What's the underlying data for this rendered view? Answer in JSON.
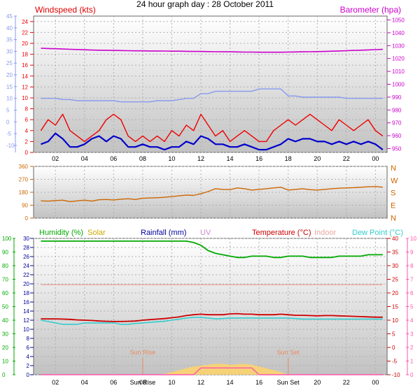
{
  "title": "24 hour graph day : 28 October 2011",
  "colors": {
    "wind": "#ee0000",
    "avg_wind": "#0000cc",
    "temp_left_axis": "#8899ee",
    "barometer": "#cc00cc",
    "direction": "#cc6600",
    "humidity": "#00aa00",
    "solar": "#ccaa00",
    "rainfall": "#000099",
    "uv": "#cc88cc",
    "temperature": "#cc0000",
    "indoor": "#e8a8a0",
    "dew_point": "#33cccc",
    "uv_axis": "#ff55aa",
    "sun_event": "#e88a60",
    "plot_bg_top": "#ffffff",
    "plot_bg_bottom": "#c0c0c0",
    "grid": "#b0b0b0"
  },
  "chart_data": [
    {
      "type": "line",
      "id": "wind_pressure",
      "x": [
        "01:00",
        "01:30",
        "02:00",
        "02:30",
        "03:00",
        "03:30",
        "04:00",
        "04:30",
        "05:00",
        "05:30",
        "06:00",
        "06:30",
        "07:00",
        "07:30",
        "08:00",
        "08:30",
        "09:00",
        "09:30",
        "10:00",
        "10:30",
        "11:00",
        "11:30",
        "12:00",
        "12:30",
        "13:00",
        "13:30",
        "14:00",
        "14:30",
        "15:00",
        "15:30",
        "16:00",
        "16:30",
        "17:00",
        "17:30",
        "18:00",
        "18:30",
        "19:00",
        "19:30",
        "20:00",
        "20:30",
        "21:00",
        "21:30",
        "22:00",
        "22:30",
        "23:00",
        "23:30",
        "24:00",
        "24:30"
      ],
      "xticks": [
        "02",
        "04",
        "06",
        "08",
        "10",
        "12",
        "14",
        "16",
        "18",
        "20",
        "22",
        "00"
      ],
      "title": "Windspeed (kts)",
      "right_title": "Barometer (hpa)",
      "left_yticks": [
        "24",
        "22",
        "20",
        "18",
        "16",
        "14",
        "12",
        "10",
        "8",
        "6",
        "4",
        "2",
        "0"
      ],
      "left_ylim": [
        0,
        25
      ],
      "right_yticks": [
        "1050",
        "1040",
        "1030",
        "1020",
        "1010",
        "1000",
        "990",
        "980",
        "970",
        "960",
        "950"
      ],
      "right_ylim": [
        947,
        1053
      ],
      "outer_yticks": [
        "45",
        "40",
        "35",
        "30",
        "25",
        "20",
        "15",
        "10",
        "5",
        "0",
        "-5",
        "-10"
      ],
      "outer_ylim": [
        -13,
        45
      ],
      "series": [
        {
          "role": "wind",
          "axis": "left",
          "values": [
            4,
            6,
            5,
            7,
            4,
            3,
            2,
            3,
            4,
            6,
            7,
            6,
            3,
            2,
            3,
            2,
            3,
            2,
            4,
            3,
            5,
            4,
            7,
            5,
            3,
            4,
            2,
            3,
            4,
            3,
            2,
            2,
            4,
            5,
            6,
            5,
            6,
            7,
            6,
            5,
            4,
            6,
            5,
            4,
            5,
            6,
            4,
            3
          ]
        },
        {
          "role": "avg_wind",
          "axis": "left",
          "values": [
            1.5,
            2,
            3.5,
            2.5,
            1,
            1,
            1.5,
            2.5,
            3,
            2,
            3,
            2.5,
            1,
            1,
            1.5,
            1,
            1,
            0.5,
            1,
            1,
            2,
            1.5,
            3,
            2.5,
            1.5,
            1.5,
            1,
            1,
            1.5,
            1,
            0.5,
            0.5,
            1,
            1.5,
            2.5,
            2,
            2.5,
            2.5,
            2,
            2,
            1.5,
            2,
            1.5,
            2,
            1.5,
            2,
            1.5,
            0.5
          ]
        },
        {
          "role": "temp_left_axis",
          "axis": "outer",
          "values": [
            10,
            10,
            10,
            9.5,
            9.5,
            9,
            9,
            9,
            9,
            9,
            9,
            8.5,
            8.5,
            8.5,
            8.5,
            8.5,
            9,
            9,
            9,
            9.5,
            10,
            10,
            12,
            12,
            13,
            13,
            13,
            13,
            13,
            13,
            14,
            14,
            14,
            14,
            11,
            11,
            10.5,
            10.5,
            10.5,
            10.5,
            10.5,
            10.5,
            10,
            10,
            10,
            10,
            10,
            10
          ]
        },
        {
          "role": "barometer",
          "axis": "right",
          "values": [
            1028,
            1027.8,
            1027.6,
            1027.4,
            1027.2,
            1027,
            1026.8,
            1026.6,
            1026.5,
            1026.4,
            1026.3,
            1026.2,
            1026.1,
            1026,
            1026,
            1025.9,
            1025.9,
            1025.8,
            1025.7,
            1025.7,
            1025.6,
            1025.5,
            1025.5,
            1025.4,
            1025.3,
            1025.2,
            1025.2,
            1025.1,
            1025,
            1025,
            1024.9,
            1024.9,
            1024.9,
            1024.9,
            1025,
            1025.1,
            1025.2,
            1025.3,
            1025.4,
            1025.5,
            1025.7,
            1025.9,
            1026.1,
            1026.3,
            1026.5,
            1026.7,
            1026.9,
            1027.1
          ]
        }
      ]
    },
    {
      "type": "line",
      "id": "wind_direction",
      "x": [
        "01:00",
        "01:30",
        "02:00",
        "02:30",
        "03:00",
        "03:30",
        "04:00",
        "04:30",
        "05:00",
        "05:30",
        "06:00",
        "06:30",
        "07:00",
        "07:30",
        "08:00",
        "08:30",
        "09:00",
        "09:30",
        "10:00",
        "10:30",
        "11:00",
        "11:30",
        "12:00",
        "12:30",
        "13:00",
        "13:30",
        "14:00",
        "14:30",
        "15:00",
        "15:30",
        "16:00",
        "16:30",
        "17:00",
        "17:30",
        "18:00",
        "18:30",
        "19:00",
        "19:30",
        "20:00",
        "20:30",
        "21:00",
        "21:30",
        "22:00",
        "22:30",
        "23:00",
        "23:30",
        "24:00",
        "24:30"
      ],
      "xticks": [
        "02",
        "04",
        "06",
        "08",
        "10",
        "12",
        "14",
        "16",
        "18",
        "20",
        "22",
        "00"
      ],
      "left_yticks": [
        "360",
        "270",
        "180",
        "90",
        "0"
      ],
      "ylim": [
        0,
        360
      ],
      "compass_labels": [
        "N",
        "W",
        "S",
        "E",
        "N"
      ],
      "series": [
        {
          "role": "direction",
          "values": [
            120,
            118,
            122,
            125,
            115,
            120,
            125,
            118,
            128,
            130,
            126,
            132,
            135,
            130,
            138,
            140,
            142,
            145,
            150,
            155,
            160,
            158,
            170,
            185,
            205,
            200,
            198,
            210,
            205,
            195,
            200,
            205,
            210,
            215,
            195,
            200,
            205,
            198,
            195,
            200,
            205,
            208,
            210,
            212,
            215,
            218,
            220,
            215
          ]
        }
      ]
    },
    {
      "type": "area",
      "id": "humidity_temperature",
      "x": [
        "01:00",
        "01:30",
        "02:00",
        "02:30",
        "03:00",
        "03:30",
        "04:00",
        "04:30",
        "05:00",
        "05:30",
        "06:00",
        "06:30",
        "07:00",
        "07:30",
        "08:00",
        "08:30",
        "09:00",
        "09:30",
        "10:00",
        "10:30",
        "11:00",
        "11:30",
        "12:00",
        "12:30",
        "13:00",
        "13:30",
        "14:00",
        "14:30",
        "15:00",
        "15:30",
        "16:00",
        "16:30",
        "17:00",
        "17:30",
        "18:00",
        "18:30",
        "19:00",
        "19:30",
        "20:00",
        "20:30",
        "21:00",
        "21:30",
        "22:00",
        "22:30",
        "23:00",
        "23:30",
        "24:00",
        "24:30"
      ],
      "xticks": [
        "02",
        "04",
        "06",
        "08",
        "10",
        "Sun Rise",
        "12",
        "14",
        "16",
        "Sun Set",
        "20",
        "22",
        "00"
      ],
      "legend": [
        "Humidity (%)",
        "Solar",
        "Rainfall (mm)",
        "UV",
        "Temperature (°C)",
        "Indoor",
        "Dew Point (°C)"
      ],
      "left_yticks": [
        "100",
        "90",
        "80",
        "70",
        "60",
        "50",
        "40",
        "30",
        "20",
        "10",
        "0"
      ],
      "left_ylim": [
        0,
        100
      ],
      "rain_yticks": [
        "30",
        "28",
        "26",
        "24",
        "22",
        "20",
        "18",
        "16",
        "14",
        "12",
        "10",
        "8",
        "6",
        "4",
        "2",
        "0"
      ],
      "rain_ylim": [
        0,
        30
      ],
      "temp_yticks": [
        "40",
        "35",
        "30",
        "25",
        "20",
        "15",
        "10",
        "5",
        "0",
        "-5",
        "-10"
      ],
      "temp_ylim": [
        -10,
        40
      ],
      "uv_yticks": [
        "10",
        "9",
        "8",
        "7",
        "6",
        "5",
        "4",
        "3",
        "2",
        "1",
        "0"
      ],
      "uv_ylim": [
        0,
        10
      ],
      "sun_events": [
        {
          "label": "Sun Rise",
          "time": "08:00"
        },
        {
          "label": "Sun Set",
          "time": "18:00"
        }
      ],
      "series": [
        {
          "role": "humidity",
          "axis": "left",
          "values": [
            98,
            98,
            98,
            98,
            98,
            98,
            98,
            98,
            98,
            98,
            98,
            98,
            98,
            98,
            98,
            98,
            98,
            98,
            98,
            98,
            98,
            97,
            95,
            91,
            89,
            88,
            87,
            86,
            86,
            87,
            87,
            87,
            86,
            86,
            87,
            87,
            87,
            86,
            86,
            86,
            86,
            87,
            87,
            87,
            87,
            88,
            88,
            88
          ]
        },
        {
          "role": "indoor",
          "axis": "temp",
          "values": [
            23,
            23,
            23,
            23,
            23,
            23,
            23,
            23,
            23,
            23,
            23,
            23,
            23,
            23,
            23,
            23,
            23,
            23,
            23,
            23,
            23,
            23,
            23,
            23,
            23,
            23,
            23,
            23,
            23,
            23,
            23,
            23,
            23,
            23,
            23,
            23,
            23,
            23,
            23,
            23,
            23,
            23,
            23,
            23,
            23,
            23,
            23,
            23
          ]
        },
        {
          "role": "temperature",
          "axis": "temp",
          "values": [
            10.5,
            10.5,
            10.5,
            10.4,
            10.3,
            10.1,
            10,
            9.9,
            9.7,
            9.6,
            9.5,
            9.5,
            9.6,
            9.7,
            10,
            10.2,
            10.4,
            10.6,
            10.9,
            11.2,
            11.7,
            12,
            12.2,
            12,
            12,
            12,
            12.3,
            12.4,
            12.2,
            12.2,
            12,
            12,
            12,
            12.2,
            12,
            11.8,
            11.8,
            11.7,
            11.6,
            11.7,
            11.7,
            11.6,
            11.5,
            11.4,
            11.3,
            11.2,
            11.1,
            11.1
          ]
        },
        {
          "role": "dew_point",
          "axis": "temp",
          "values": [
            10,
            9.5,
            9,
            8.5,
            8.5,
            8.5,
            9,
            9,
            9,
            9,
            9,
            8.5,
            8.5,
            8.8,
            9,
            9.2,
            9.4,
            9.6,
            10,
            10.4,
            10.8,
            11,
            11,
            10.8,
            10.5,
            10.6,
            10.8,
            10.8,
            10.8,
            10.8,
            10.8,
            10.8,
            10.8,
            10.8,
            10.8,
            10.6,
            10.4,
            10.4,
            10.4,
            10.4,
            10.4,
            10.4,
            10.4,
            10.4,
            10.4,
            10.4,
            10.4,
            10.4
          ]
        },
        {
          "role": "solar",
          "axis": "rain",
          "values": [
            0,
            0,
            0,
            0,
            0,
            0,
            0,
            0,
            0,
            0,
            0,
            0,
            0,
            0,
            0,
            0,
            0,
            0.2,
            0.6,
            1,
            1.4,
            1.8,
            2,
            2.2,
            2.4,
            2.4,
            2.2,
            2.3,
            2.4,
            2.2,
            1.8,
            1.4,
            1,
            0.6,
            0,
            0,
            0,
            0,
            0,
            0,
            0,
            0,
            0,
            0,
            0,
            0,
            0,
            0
          ]
        },
        {
          "role": "uv",
          "axis": "uv",
          "values": [
            0,
            0,
            0,
            0,
            0,
            0,
            0,
            0,
            0,
            0,
            0,
            0,
            0,
            0,
            0,
            0,
            0,
            0,
            0,
            0,
            0,
            0,
            0.5,
            0.5,
            0.5,
            0.5,
            0.5,
            0.5,
            0.5,
            0.5,
            0,
            0,
            0,
            0,
            0,
            0,
            0,
            0,
            0,
            0,
            0,
            0,
            0,
            0,
            0,
            0,
            0,
            0
          ]
        }
      ]
    }
  ]
}
